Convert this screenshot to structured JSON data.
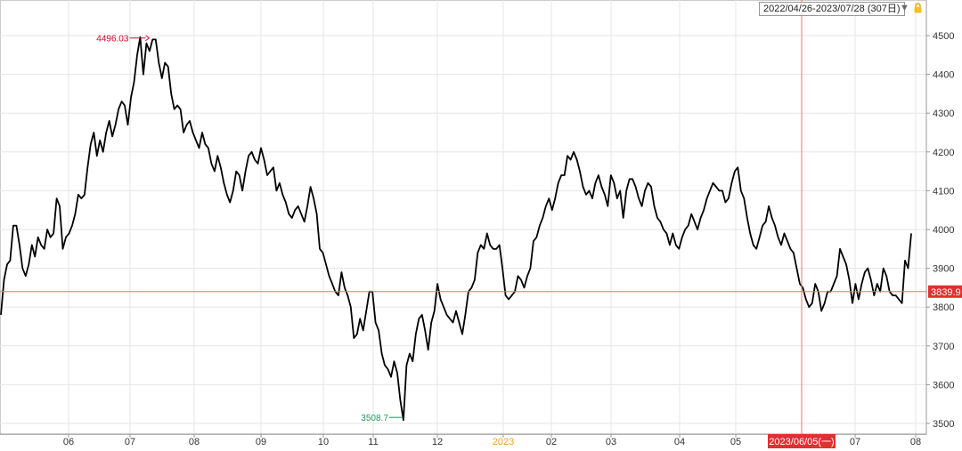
{
  "toolbar": {
    "date_range": "2022/04/26-2023/07/28 (307日)",
    "dropdown_icon": "triangle-down-icon",
    "lock_icon": "lock-icon"
  },
  "colors": {
    "line": "#000000",
    "crosshair": "#ff6b6b",
    "high_label": "#e0002a",
    "low_label": "#1f9a57",
    "year_label": "#f0a030",
    "price_tag_bg": "#e03030",
    "date_tag_bg": "#e03030",
    "grid": "#e6e6e6"
  },
  "chart_data": {
    "type": "line",
    "xlabel": "",
    "ylabel": "",
    "ylim": [
      3480,
      4540
    ],
    "y_ticks": [
      3500,
      3600,
      3700,
      3800,
      3900,
      4000,
      4100,
      4200,
      4300,
      4400,
      4500
    ],
    "x_ticks": [
      "06",
      "07",
      "08",
      "09",
      "10",
      "11",
      "12",
      "2023",
      "02",
      "03",
      "04",
      "05",
      "2023/06/05(一)",
      "07",
      "08"
    ],
    "grid": true,
    "crosshair": {
      "price_label": "3839.9",
      "y": 3839.9,
      "date_label": "2023/06/05(一)"
    },
    "high": {
      "label": "4496.03",
      "value": 4496.03
    },
    "low": {
      "label": "3508.7",
      "value": 3508.7
    },
    "series": [
      {
        "values": [
          3780,
          3870,
          3910,
          3920,
          4010,
          4010,
          3960,
          3900,
          3880,
          3910,
          3960,
          3930,
          3980,
          3960,
          3950,
          4000,
          3980,
          3990,
          4080,
          4060,
          3950,
          3980,
          3990,
          4010,
          4040,
          4090,
          4080,
          4090,
          4160,
          4220,
          4250,
          4190,
          4230,
          4200,
          4250,
          4280,
          4240,
          4270,
          4310,
          4330,
          4320,
          4270,
          4340,
          4380,
          4450,
          4496,
          4400,
          4480,
          4460,
          4490,
          4490,
          4430,
          4390,
          4430,
          4420,
          4350,
          4310,
          4320,
          4310,
          4250,
          4270,
          4280,
          4250,
          4230,
          4210,
          4250,
          4220,
          4210,
          4170,
          4150,
          4190,
          4160,
          4120,
          4090,
          4070,
          4100,
          4150,
          4140,
          4100,
          4150,
          4190,
          4200,
          4180,
          4170,
          4210,
          4180,
          4140,
          4150,
          4160,
          4100,
          4120,
          4090,
          4070,
          4040,
          4030,
          4050,
          4060,
          4040,
          4020,
          4060,
          4110,
          4080,
          4040,
          3950,
          3940,
          3910,
          3880,
          3860,
          3840,
          3830,
          3890,
          3850,
          3830,
          3800,
          3720,
          3730,
          3770,
          3740,
          3790,
          3840,
          3840,
          3760,
          3740,
          3680,
          3650,
          3640,
          3620,
          3660,
          3630,
          3560,
          3508.7,
          3650,
          3680,
          3660,
          3730,
          3770,
          3780,
          3740,
          3690,
          3760,
          3790,
          3860,
          3820,
          3800,
          3780,
          3770,
          3760,
          3790,
          3760,
          3730,
          3780,
          3840,
          3850,
          3870,
          3940,
          3960,
          3950,
          3990,
          3960,
          3950,
          3950,
          3960,
          3900,
          3830,
          3820,
          3830,
          3840,
          3880,
          3870,
          3850,
          3880,
          3900,
          3970,
          3980,
          4010,
          4030,
          4060,
          4080,
          4050,
          4080,
          4120,
          4140,
          4140,
          4190,
          4180,
          4200,
          4180,
          4150,
          4110,
          4090,
          4100,
          4080,
          4120,
          4140,
          4110,
          4090,
          4060,
          4140,
          4120,
          4080,
          4100,
          4030,
          4100,
          4130,
          4130,
          4110,
          4080,
          4060,
          4100,
          4120,
          4110,
          4060,
          4030,
          4020,
          4000,
          3990,
          3960,
          3990,
          3960,
          3950,
          3980,
          4000,
          4010,
          4040,
          4020,
          4000,
          4030,
          4050,
          4080,
          4100,
          4120,
          4110,
          4100,
          4100,
          4070,
          4080,
          4120,
          4150,
          4160,
          4100,
          4080,
          4030,
          3990,
          3960,
          3950,
          3980,
          4010,
          4020,
          4060,
          4030,
          4010,
          3980,
          3960,
          3990,
          3970,
          3950,
          3940,
          3900,
          3860,
          3850,
          3820,
          3800,
          3810,
          3860,
          3839.9,
          3790,
          3810,
          3840,
          3840,
          3860,
          3880,
          3950,
          3930,
          3910,
          3870,
          3810,
          3860,
          3820,
          3860,
          3890,
          3900,
          3870,
          3830,
          3860,
          3840,
          3900,
          3880,
          3840,
          3830,
          3830,
          3820,
          3810,
          3920,
          3900,
          3990
        ]
      }
    ]
  }
}
